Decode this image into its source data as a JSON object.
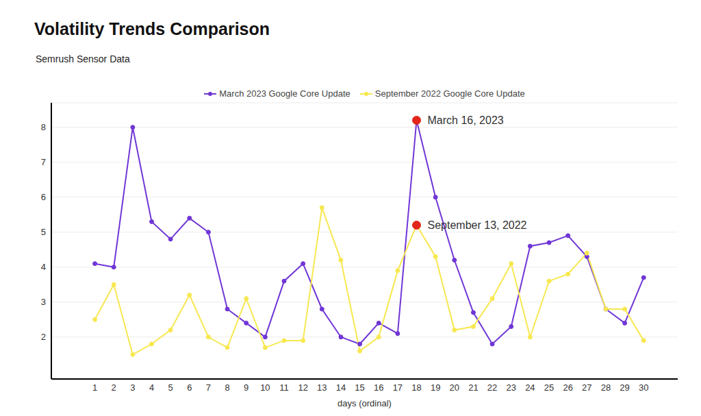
{
  "chart_data": {
    "type": "line",
    "title": "Volatility Trends Comparison",
    "subtitle": "Semrush Sensor Data",
    "x_label": "days (ordinal)",
    "x": [
      1,
      2,
      3,
      4,
      5,
      6,
      7,
      8,
      9,
      10,
      11,
      12,
      13,
      14,
      15,
      16,
      17,
      18,
      19,
      20,
      21,
      22,
      23,
      24,
      25,
      26,
      27,
      28,
      29,
      30
    ],
    "series": [
      {
        "name": "March 2023 Google Core Update",
        "color": "#7036d6",
        "marker": "circle",
        "values": [
          4.1,
          4.0,
          8.0,
          5.3,
          4.8,
          5.4,
          5.0,
          2.8,
          2.4,
          2.0,
          3.6,
          4.1,
          2.8,
          2.0,
          1.8,
          2.4,
          2.1,
          8.2,
          6.0,
          4.2,
          2.7,
          1.8,
          2.3,
          4.6,
          4.7,
          4.9,
          4.3,
          2.8,
          2.4,
          3.7
        ]
      },
      {
        "name": "September 2022 Google Core Update",
        "color": "#f7e850",
        "marker": "circle",
        "values": [
          2.5,
          3.5,
          1.5,
          1.8,
          2.2,
          3.2,
          2.0,
          1.7,
          3.1,
          1.7,
          1.9,
          1.9,
          5.7,
          4.2,
          1.6,
          2.0,
          3.9,
          5.2,
          4.3,
          2.2,
          2.3,
          3.1,
          4.1,
          2.0,
          3.6,
          3.8,
          4.4,
          2.8,
          2.8,
          1.9
        ]
      }
    ],
    "annotations": [
      {
        "text": "March 16, 2023",
        "x": 18,
        "y": 8.2
      },
      {
        "text": "September 13, 2022",
        "x": 18,
        "y": 5.2
      }
    ],
    "xlim": [
      -1.3,
      31.8
    ],
    "xticks": [
      1,
      2,
      3,
      4,
      5,
      6,
      7,
      8,
      9,
      10,
      11,
      12,
      13,
      14,
      15,
      16,
      17,
      18,
      19,
      20,
      21,
      22,
      23,
      24,
      25,
      26,
      27,
      28,
      29,
      30
    ],
    "ylim": [
      0.8,
      8.7
    ],
    "yticks": [
      2,
      3,
      4,
      5,
      6,
      7,
      8
    ],
    "grid": true,
    "legend": "top"
  }
}
